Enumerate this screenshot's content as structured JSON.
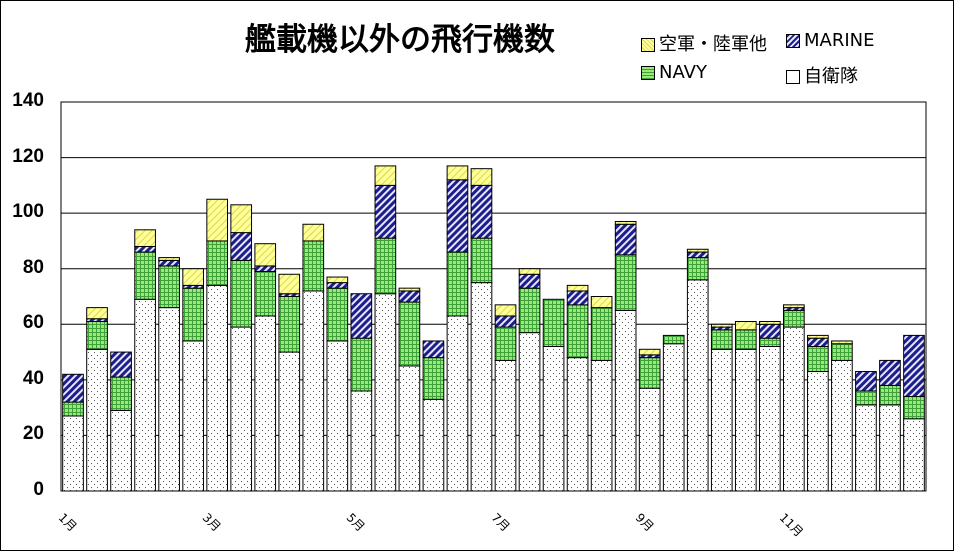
{
  "chart_data": {
    "type": "bar",
    "stacked": true,
    "title": "艦載機以外の飛行機数",
    "ylim": [
      0,
      140
    ],
    "yticks": [
      0,
      20,
      40,
      60,
      80,
      100,
      120,
      140
    ],
    "grid": true,
    "legend_position": "top-right",
    "x_tick_labels": [
      {
        "index": 0,
        "label": "1月"
      },
      {
        "index": 6,
        "label": "3月"
      },
      {
        "index": 12,
        "label": "5月"
      },
      {
        "index": 18,
        "label": "7月"
      },
      {
        "index": 24,
        "label": "9月"
      },
      {
        "index": 30,
        "label": "11月"
      }
    ],
    "series": [
      {
        "name": "自衛隊",
        "values": [
          27,
          51,
          29,
          69,
          66,
          54,
          74,
          59,
          63,
          50,
          72,
          54,
          36,
          71,
          45,
          33,
          63,
          75,
          47,
          57,
          52,
          48,
          47,
          65,
          37,
          53,
          76,
          51,
          51,
          52,
          59,
          43,
          47,
          31,
          31,
          26
        ]
      },
      {
        "name": "NAVY",
        "values": [
          5,
          10,
          12,
          17,
          15,
          19,
          16,
          24,
          16,
          20,
          18,
          19,
          19,
          20,
          23,
          15,
          23,
          16,
          12,
          16,
          17,
          19,
          19,
          20,
          11,
          3,
          8,
          7,
          7,
          3,
          6,
          9,
          6,
          5,
          7,
          8
        ]
      },
      {
        "name": "MARINE",
        "values": [
          10,
          1,
          9,
          2,
          2,
          1,
          0,
          10,
          2,
          1,
          0,
          2,
          16,
          19,
          4,
          6,
          26,
          19,
          4,
          5,
          0,
          5,
          0,
          11,
          1,
          0,
          2,
          1,
          0,
          5,
          1,
          3,
          0,
          7,
          9,
          22
        ]
      },
      {
        "name": "空軍・陸軍他",
        "values": [
          0,
          4,
          0,
          6,
          1,
          6,
          15,
          10,
          8,
          7,
          6,
          2,
          0,
          7,
          1,
          0,
          5,
          6,
          4,
          2,
          0,
          2,
          4,
          1,
          2,
          0,
          1,
          1,
          3,
          1,
          1,
          1,
          1,
          0,
          0,
          0
        ]
      }
    ],
    "colors": {
      "自衛隊": "#ffffff",
      "NAVY": "#99ee77",
      "MARINE": "#1e1e8a",
      "空軍・陸軍他": "#ffff88"
    }
  }
}
